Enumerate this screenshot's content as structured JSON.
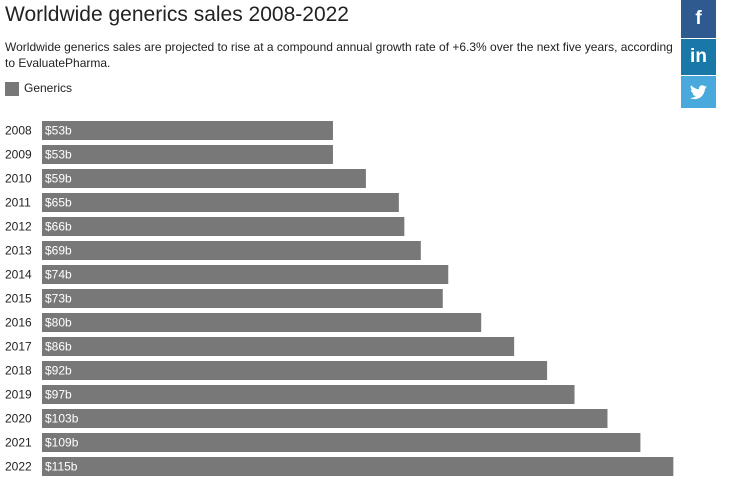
{
  "chart_data": {
    "type": "hbar",
    "title": "Worldwide generics sales 2008-2022",
    "subtitle": "Worldwide generics sales are projected to rise at a compound annual growth rate of +6.3% over the next five years, according to EvaluatePharma.",
    "categories": [
      "2008",
      "2009",
      "2010",
      "2011",
      "2012",
      "2013",
      "2014",
      "2015",
      "2016",
      "2017",
      "2018",
      "2019",
      "2020",
      "2021",
      "2022"
    ],
    "series": [
      {
        "name": "Generics",
        "color": "#787878",
        "values": [
          53,
          53,
          59,
          65,
          66,
          69,
          74,
          73,
          80,
          86,
          92,
          97,
          103,
          109,
          115
        ],
        "value_labels": [
          "$53b",
          "$53b",
          "$59b",
          "$65b",
          "$66b",
          "$69b",
          "$74b",
          "$73b",
          "$80b",
          "$86b",
          "$92b",
          "$97b",
          "$103b",
          "$109b",
          "$115b"
        ]
      }
    ]
  },
  "share_icons": [
    "f",
    "in"
  ]
}
